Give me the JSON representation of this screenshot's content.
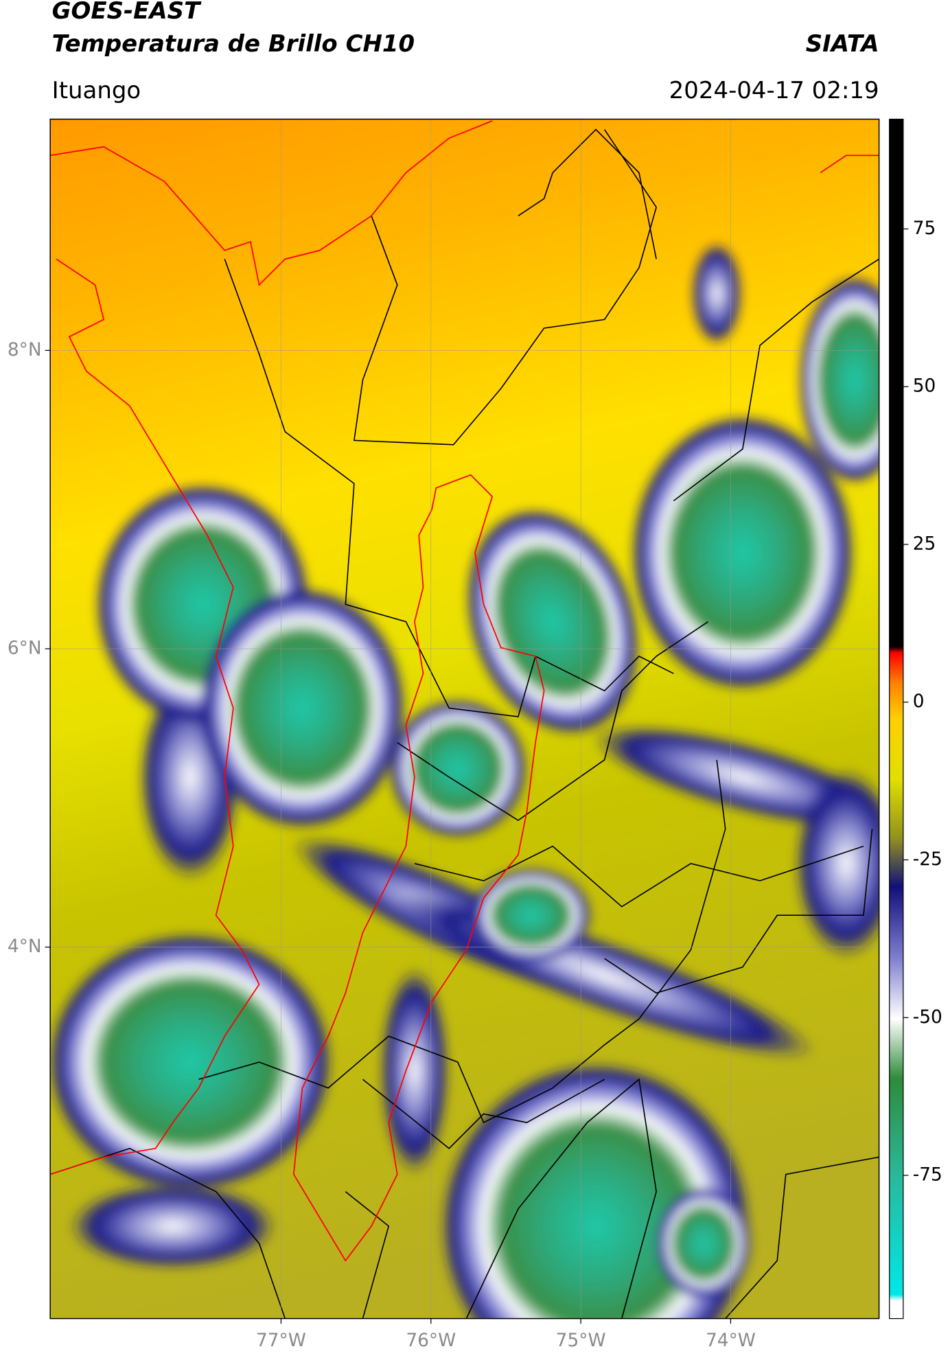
{
  "chart_data": {
    "type": "map",
    "title": "GOES-EAST",
    "subtitle": "Temperatura de Brillo CH10",
    "source": "SIATA",
    "location": "Ituango",
    "timestamp": "2024-04-17 02:19",
    "xlim": [
      -78.54,
      -73.01
    ],
    "ylim": [
      1.51,
      9.55
    ],
    "xticks": [
      {
        "value": -77,
        "label": "77°W"
      },
      {
        "value": -76,
        "label": "76°W"
      },
      {
        "value": -75,
        "label": "75°W"
      },
      {
        "value": -74,
        "label": "74°W"
      }
    ],
    "yticks": [
      {
        "value": 8,
        "label": "8°N"
      },
      {
        "value": 6,
        "label": "6°N"
      },
      {
        "value": 4,
        "label": "4°N"
      }
    ],
    "grid": true,
    "colorbar_lim": [
      -97.7,
      92.4
    ],
    "colorbar_ticks": [
      75,
      50,
      25,
      0,
      -25,
      -50,
      -75
    ]
  }
}
